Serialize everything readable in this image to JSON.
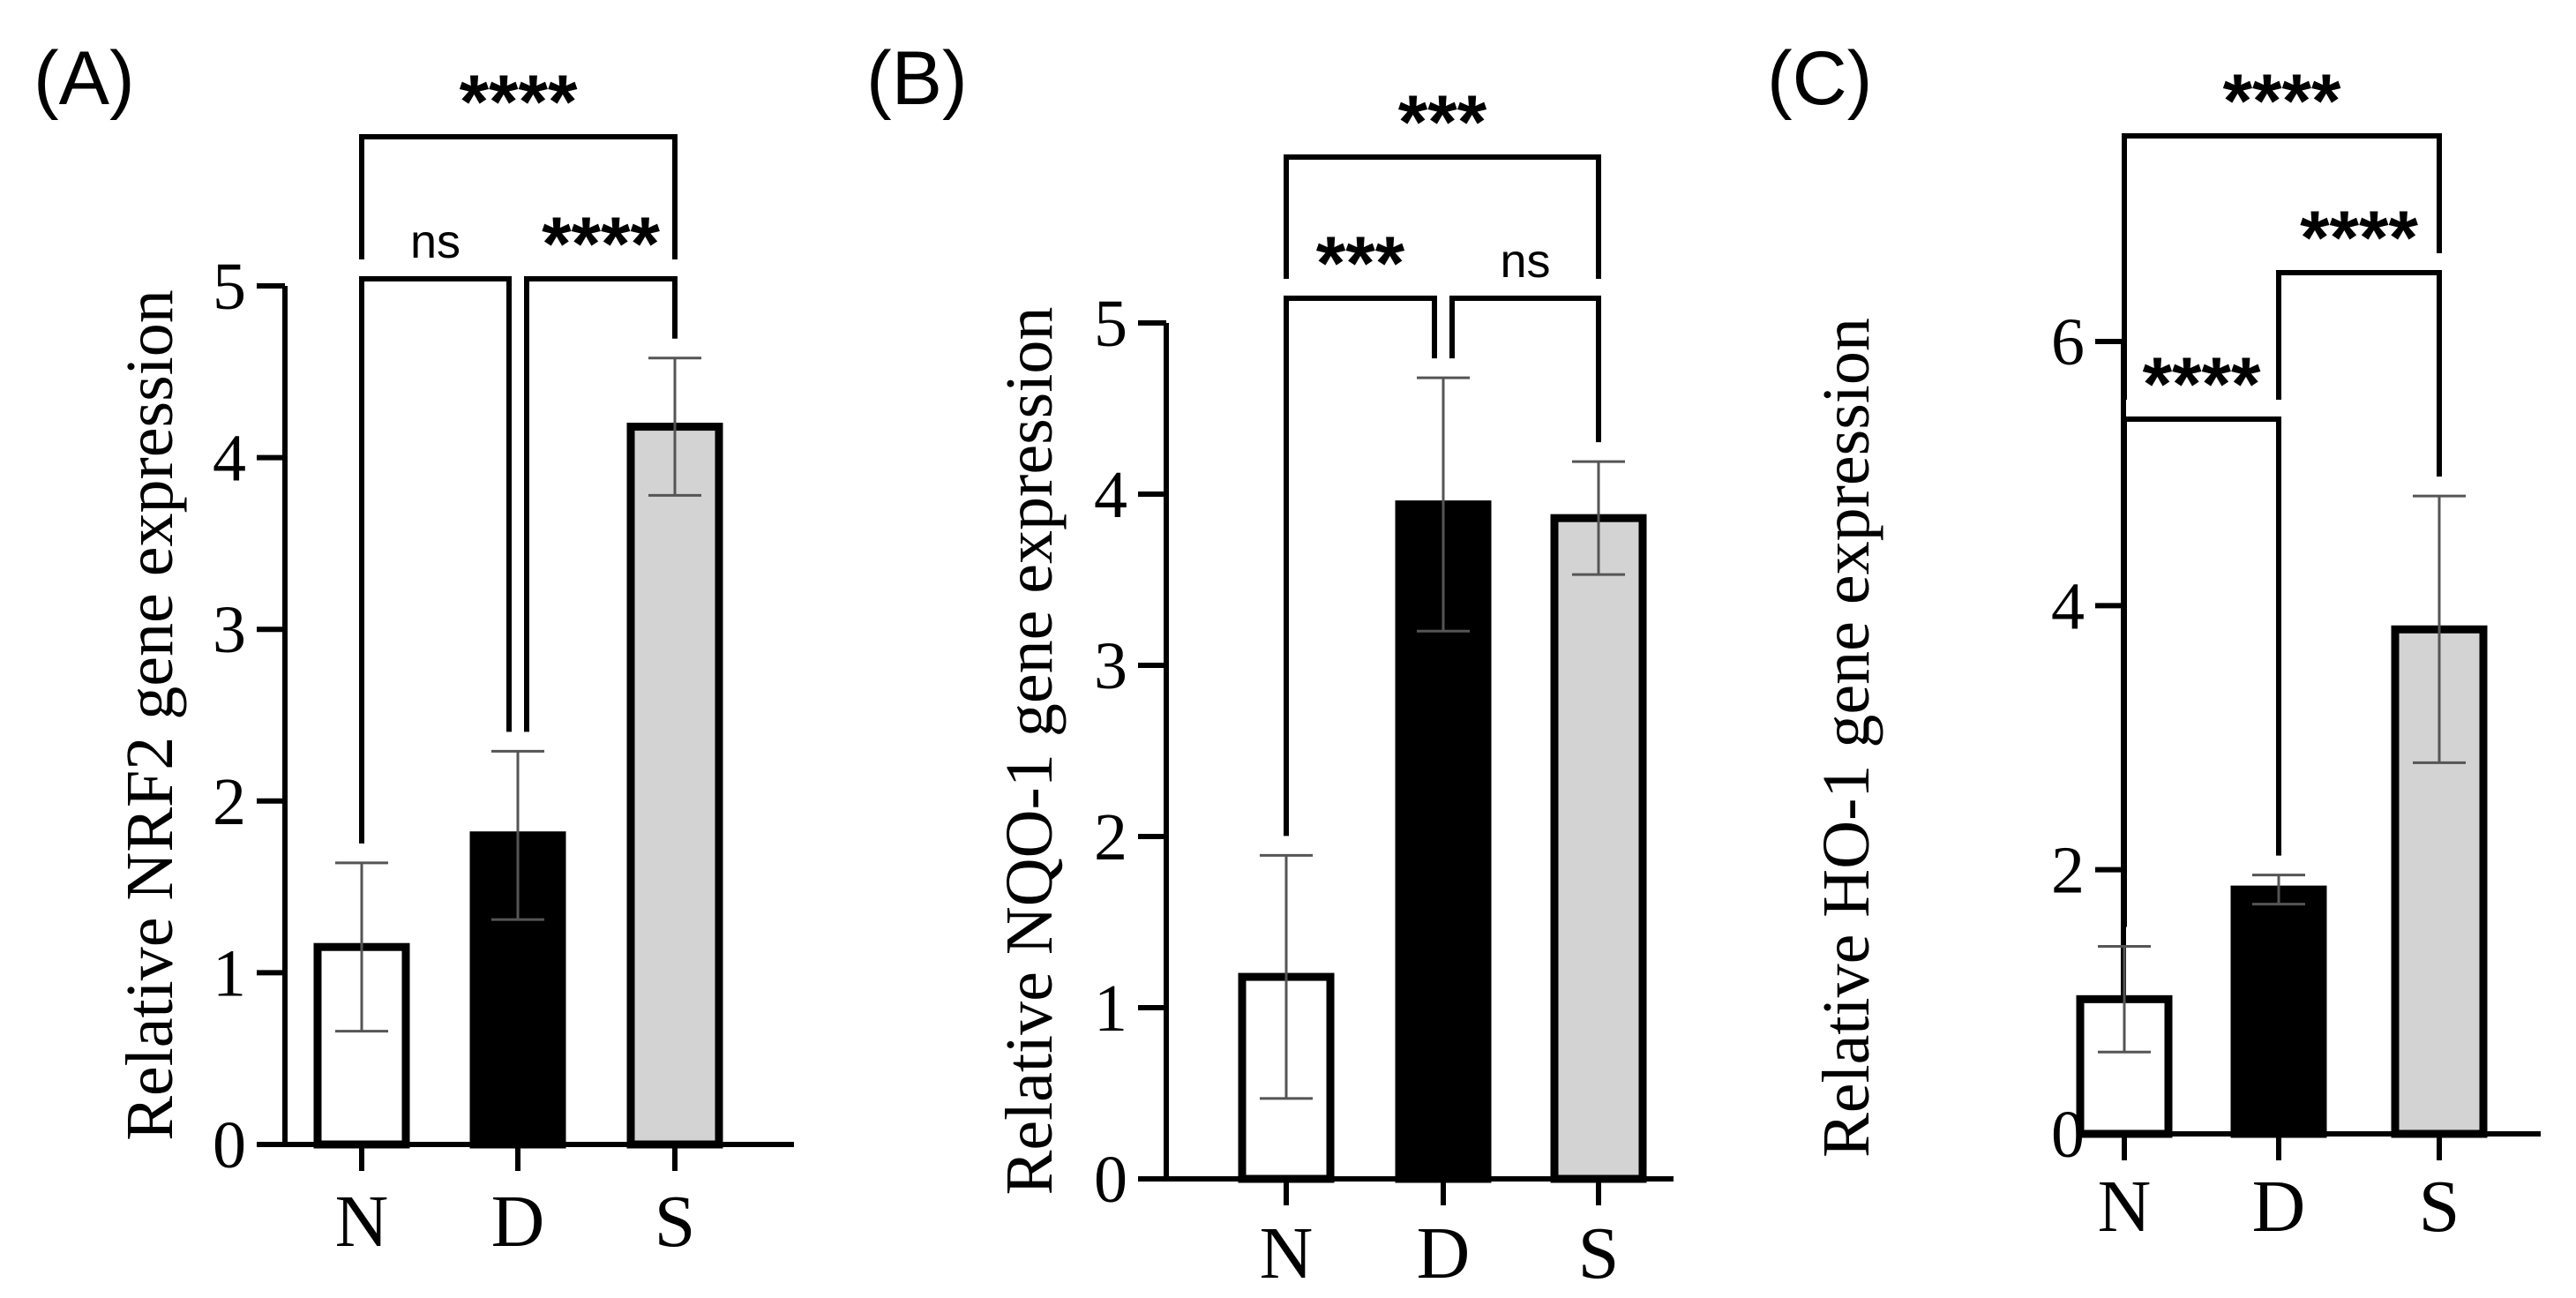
{
  "figure": {
    "colors": {
      "N": "#ffffff",
      "D": "#000000",
      "S": "#d3d3d3",
      "stroke": "#000000",
      "error": "#555555"
    }
  },
  "chart_data": [
    {
      "panel": "(A)",
      "type": "bar",
      "categories": [
        "N",
        "D",
        "S"
      ],
      "values": [
        1.15,
        1.8,
        4.18
      ],
      "errors": [
        0.49,
        0.49,
        0.4
      ],
      "ylabel": "Relative NRF2 gene expression",
      "xlabel": "",
      "ylim": [
        0,
        5
      ],
      "yticks": [
        0,
        1,
        2,
        3,
        4,
        5
      ],
      "ytick_labels": [
        "0",
        "1",
        "2",
        "3",
        "4",
        "5"
      ],
      "comparisons": [
        {
          "from": "N",
          "to": "S",
          "label": "****",
          "level": 2
        },
        {
          "from": "N",
          "to": "D",
          "label": "ns",
          "level": 1
        },
        {
          "from": "D",
          "to": "S",
          "label": "****",
          "level": 1
        }
      ]
    },
    {
      "panel": "(B)",
      "type": "bar",
      "categories": [
        "N",
        "D",
        "S"
      ],
      "values": [
        1.18,
        3.94,
        3.86
      ],
      "errors": [
        0.71,
        0.74,
        0.33
      ],
      "ylabel": "Relative NQO-1 gene expression",
      "xlabel": "",
      "ylim": [
        0,
        5
      ],
      "yticks": [
        0,
        1,
        2,
        3,
        4,
        5
      ],
      "ytick_labels": [
        "0",
        "1",
        "2",
        "3",
        "4",
        "5"
      ],
      "comparisons": [
        {
          "from": "N",
          "to": "S",
          "label": "***",
          "level": 2
        },
        {
          "from": "N",
          "to": "D",
          "label": "***",
          "level": 1
        },
        {
          "from": "D",
          "to": "S",
          "label": "ns",
          "level": 1
        }
      ]
    },
    {
      "panel": "(C)",
      "type": "bar",
      "categories": [
        "N",
        "D",
        "S"
      ],
      "values": [
        1.02,
        1.85,
        3.82
      ],
      "errors": [
        0.4,
        0.11,
        1.01
      ],
      "ylabel": "Relative HO-1 gene expression",
      "xlabel": "",
      "ylim": [
        0,
        6
      ],
      "yticks": [
        0,
        2,
        4,
        6
      ],
      "ytick_labels": [
        "0",
        "2",
        "4",
        "6"
      ],
      "comparisons": [
        {
          "from": "N",
          "to": "S",
          "label": "****",
          "level": 3
        },
        {
          "from": "D",
          "to": "S",
          "label": "****",
          "level": 2
        },
        {
          "from": "N",
          "to": "D",
          "label": "****",
          "level": 1
        }
      ]
    }
  ]
}
